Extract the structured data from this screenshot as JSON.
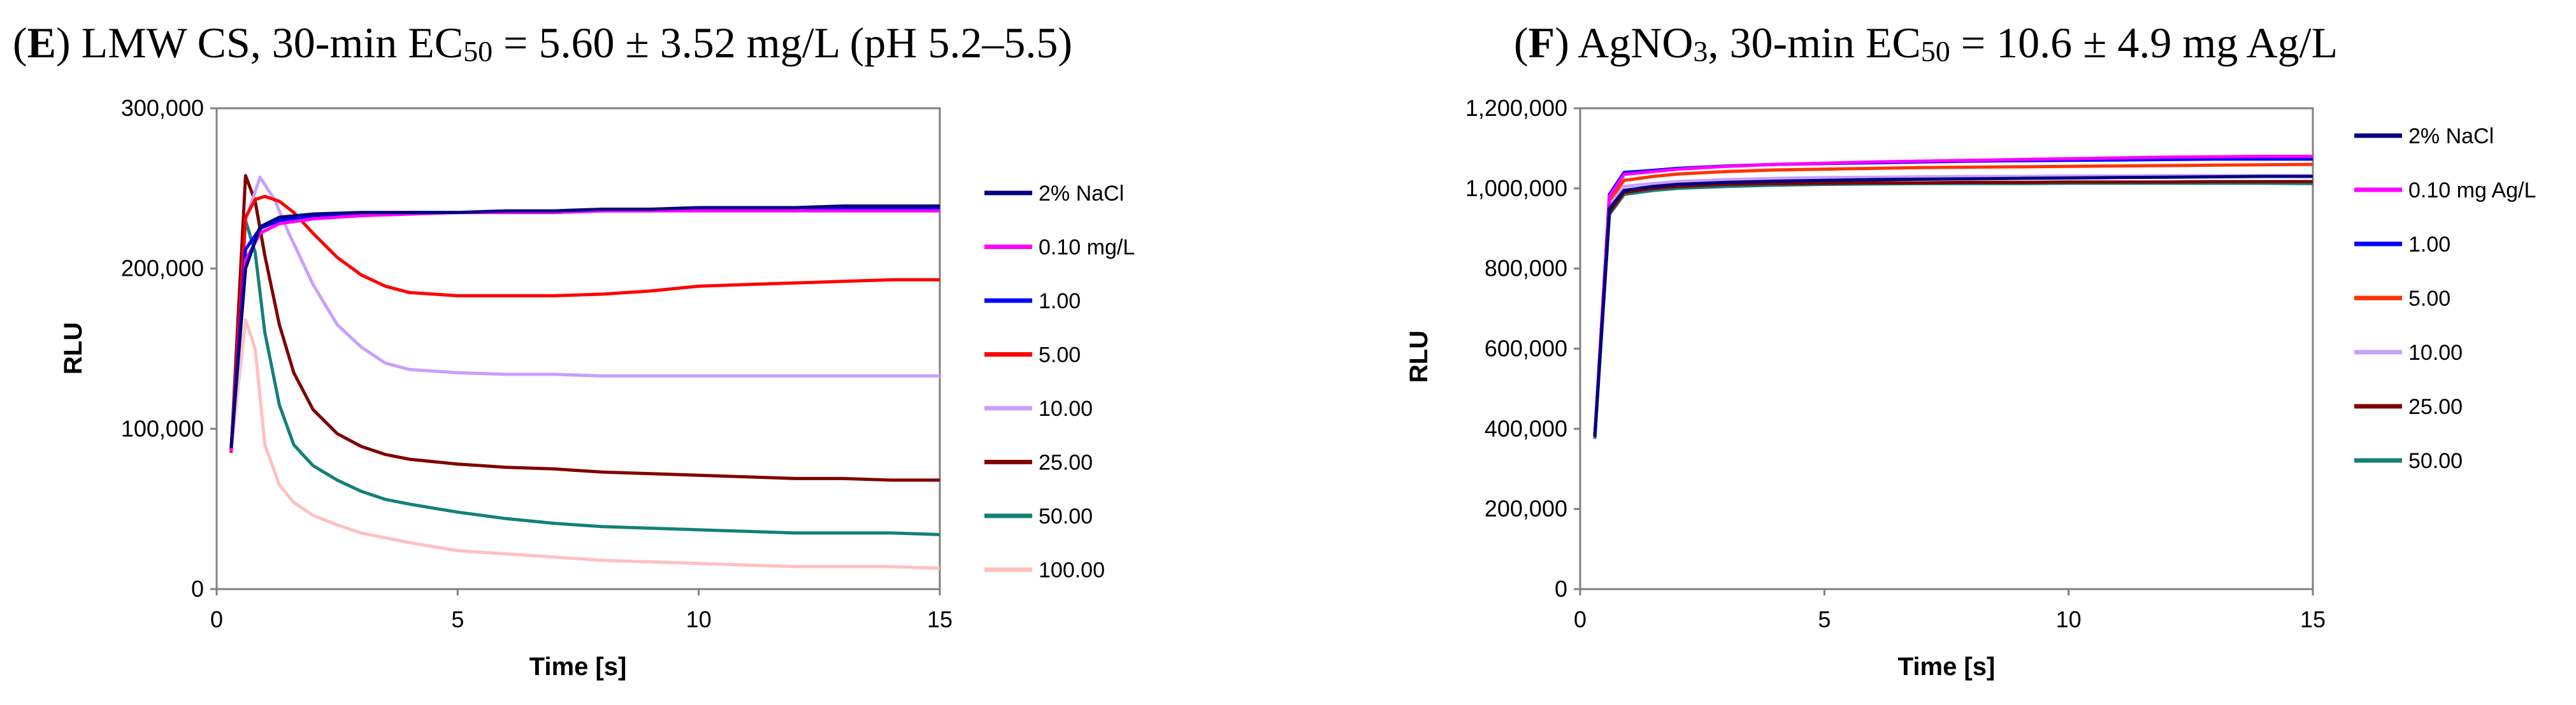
{
  "chart_data": [
    {
      "type": "line",
      "panel": "E",
      "title": "LMW CS, 30-min EC50 = 5.60 ± 3.52 mg/L (pH 5.2–5.5)",
      "title_parts": {
        "open": "(",
        "letter": "E",
        "close": ")",
        "pre": " LMW CS, 30-min EC",
        "sub": "50",
        "post": " = 5.60 ± 3.52 mg/L (pH 5.2–5.5)"
      },
      "xlabel": "Time [s]",
      "ylabel": "RLU",
      "xlim": [
        0,
        15
      ],
      "ylim": [
        0,
        300000
      ],
      "xticks": [
        0,
        5,
        10,
        15
      ],
      "xtick_labels": [
        "0",
        "5",
        "10",
        "15"
      ],
      "yticks": [
        0,
        100000,
        200000,
        300000
      ],
      "ytick_labels": [
        "0",
        "100,000",
        "200,000",
        "300,000"
      ],
      "legend_position": "right",
      "series": [
        {
          "name": "2% NaCl",
          "color": "#00007f",
          "x": [
            0.3,
            0.6,
            0.9,
            1.3,
            2,
            3,
            4,
            5,
            6,
            7,
            8,
            9,
            10,
            11,
            12,
            13,
            14,
            15
          ],
          "y": [
            88000,
            200000,
            226000,
            232000,
            234000,
            235000,
            235000,
            235000,
            236000,
            236000,
            237000,
            237000,
            238000,
            238000,
            238000,
            239000,
            239000,
            239000
          ]
        },
        {
          "name": "0.10  mg/L",
          "color": "#ff00ff",
          "x": [
            0.3,
            0.6,
            0.9,
            1.3,
            2,
            3,
            4,
            5,
            6,
            7,
            8,
            9,
            10,
            11,
            12,
            13,
            14,
            15
          ],
          "y": [
            86000,
            205000,
            222000,
            228000,
            231000,
            233000,
            234000,
            235000,
            235000,
            235000,
            236000,
            236000,
            236000,
            236000,
            236000,
            236000,
            236000,
            236000
          ]
        },
        {
          "name": "1.00",
          "color": "#0000ff",
          "x": [
            0.3,
            0.6,
            0.9,
            1.3,
            2,
            3,
            4,
            5,
            6,
            7,
            8,
            9,
            10,
            11,
            12,
            13,
            14,
            15
          ],
          "y": [
            87000,
            212000,
            225000,
            230000,
            233000,
            234000,
            235000,
            235000,
            235000,
            235000,
            236000,
            236000,
            237000,
            237000,
            236000,
            237000,
            237000,
            237000
          ]
        },
        {
          "name": "5.00",
          "color": "#ff0000",
          "x": [
            0.3,
            0.6,
            0.8,
            1.0,
            1.3,
            1.6,
            2,
            2.5,
            3,
            3.5,
            4,
            4.5,
            5,
            6,
            7,
            8,
            9,
            10,
            11,
            12,
            13,
            14,
            15
          ],
          "y": [
            85000,
            232000,
            243000,
            245000,
            242000,
            235000,
            222000,
            207000,
            196000,
            189000,
            185000,
            184000,
            183000,
            183000,
            183000,
            184000,
            186000,
            189000,
            190000,
            191000,
            192000,
            193000,
            193000
          ]
        },
        {
          "name": "10.00",
          "color": "#c8a0ff",
          "x": [
            0.3,
            0.6,
            0.9,
            1.2,
            1.5,
            2,
            2.5,
            3,
            3.5,
            4,
            5,
            6,
            7,
            8,
            9,
            10,
            11,
            12,
            13,
            14,
            15
          ],
          "y": [
            87000,
            230000,
            257000,
            243000,
            222000,
            190000,
            165000,
            151000,
            141000,
            137000,
            135000,
            134000,
            134000,
            133000,
            133000,
            133000,
            133000,
            133000,
            133000,
            133000,
            133000
          ]
        },
        {
          "name": "25.00",
          "color": "#7f0000",
          "x": [
            0.3,
            0.6,
            0.8,
            1.0,
            1.3,
            1.6,
            2,
            2.5,
            3,
            3.5,
            4,
            5,
            6,
            7,
            8,
            9,
            10,
            11,
            12,
            13,
            14,
            15
          ],
          "y": [
            86000,
            258000,
            242000,
            208000,
            165000,
            135000,
            112000,
            97000,
            89000,
            84000,
            81000,
            78000,
            76000,
            75000,
            73000,
            72000,
            71000,
            70000,
            69000,
            69000,
            68000,
            68000
          ]
        },
        {
          "name": "50.00",
          "color": "#138078",
          "x": [
            0.3,
            0.6,
            0.8,
            1.0,
            1.3,
            1.6,
            2,
            2.5,
            3,
            3.5,
            4,
            5,
            6,
            7,
            8,
            9,
            10,
            11,
            12,
            13,
            14,
            15
          ],
          "y": [
            87000,
            230000,
            210000,
            160000,
            115000,
            90000,
            77000,
            68000,
            61000,
            56000,
            53000,
            48000,
            44000,
            41000,
            39000,
            38000,
            37000,
            36000,
            35000,
            35000,
            35000,
            34000
          ]
        },
        {
          "name": "100.00",
          "color": "#ffc0c0",
          "x": [
            0.3,
            0.6,
            0.8,
            1.0,
            1.3,
            1.6,
            2,
            2.5,
            3,
            3.5,
            4,
            5,
            6,
            7,
            8,
            9,
            10,
            11,
            12,
            13,
            14,
            15
          ],
          "y": [
            86000,
            168000,
            150000,
            90000,
            65000,
            54000,
            46000,
            40000,
            35000,
            32000,
            29000,
            24000,
            22000,
            20000,
            18000,
            17000,
            16000,
            15000,
            14000,
            14000,
            14000,
            13000
          ]
        }
      ]
    },
    {
      "type": "line",
      "panel": "F",
      "title": "AgNO3, 30-min EC50 = 10.6 ± 4.9 mg Ag/L",
      "title_parts": {
        "open": "(",
        "letter": "F",
        "close": ")",
        "pre": " AgNO",
        "sub1": "3",
        "mid": ", 30-min EC",
        "sub2": "50",
        "post": " = 10.6 ± 4.9 mg Ag/L"
      },
      "xlabel": "Time [s]",
      "ylabel": "RLU",
      "xlim": [
        0,
        15
      ],
      "ylim": [
        0,
        1200000
      ],
      "xticks": [
        0,
        5,
        10,
        15
      ],
      "xtick_labels": [
        "0",
        "5",
        "10",
        "15"
      ],
      "yticks": [
        0,
        200000,
        400000,
        600000,
        800000,
        1000000,
        1200000
      ],
      "ytick_labels": [
        "0",
        "200,000",
        "400,000",
        "600,000",
        "800,000",
        "1,000,000",
        "1,200,000"
      ],
      "legend_position": "right",
      "series": [
        {
          "name": "2% NaCl",
          "color": "#00007f",
          "x": [
            0.3,
            0.6,
            0.9,
            1.5,
            2,
            3,
            4,
            5,
            6,
            7,
            8,
            9,
            10,
            11,
            12,
            13,
            14,
            15
          ],
          "y": [
            380000,
            950000,
            995000,
            1005000,
            1010000,
            1015000,
            1018000,
            1020000,
            1022000,
            1023000,
            1024000,
            1025000,
            1026000,
            1027000,
            1028000,
            1029000,
            1030000,
            1030000
          ]
        },
        {
          "name": "0.10 mg Ag/L",
          "color": "#ff00ff",
          "x": [
            0.3,
            0.6,
            0.9,
            1.5,
            2,
            3,
            4,
            5,
            6,
            7,
            8,
            9,
            10,
            11,
            12,
            13,
            14,
            15
          ],
          "y": [
            380000,
            980000,
            1035000,
            1042000,
            1048000,
            1055000,
            1060000,
            1063000,
            1066000,
            1068000,
            1070000,
            1072000,
            1074000,
            1076000,
            1078000,
            1079000,
            1080000,
            1080000
          ]
        },
        {
          "name": "1.00",
          "color": "#0000ff",
          "x": [
            0.3,
            0.6,
            0.9,
            1.5,
            2,
            3,
            4,
            5,
            6,
            7,
            8,
            9,
            10,
            11,
            12,
            13,
            14,
            15
          ],
          "y": [
            380000,
            985000,
            1040000,
            1045000,
            1050000,
            1056000,
            1060000,
            1062000,
            1064000,
            1066000,
            1068000,
            1069000,
            1070000,
            1071000,
            1072000,
            1073000,
            1073000,
            1073000
          ]
        },
        {
          "name": "5.00",
          "color": "#ff3300",
          "x": [
            0.3,
            0.6,
            0.9,
            1.5,
            2,
            3,
            4,
            5,
            6,
            7,
            8,
            9,
            10,
            11,
            12,
            13,
            14,
            15
          ],
          "y": [
            380000,
            970000,
            1020000,
            1030000,
            1036000,
            1042000,
            1046000,
            1048000,
            1050000,
            1052000,
            1053000,
            1054000,
            1055000,
            1056000,
            1057000,
            1058000,
            1059000,
            1060000
          ]
        },
        {
          "name": "10.00",
          "color": "#c8a0ff",
          "x": [
            0.3,
            0.6,
            0.9,
            1.5,
            2,
            3,
            4,
            5,
            6,
            7,
            8,
            9,
            10,
            11,
            12,
            13,
            14,
            15
          ],
          "y": [
            380000,
            960000,
            1005000,
            1012000,
            1017000,
            1022000,
            1025000,
            1027000,
            1028000,
            1029000,
            1030000,
            1030000,
            1031000,
            1031000,
            1032000,
            1032000,
            1032000,
            1032000
          ]
        },
        {
          "name": "25.00",
          "color": "#7f0000",
          "x": [
            0.3,
            0.6,
            0.9,
            1.5,
            2,
            3,
            4,
            5,
            6,
            7,
            8,
            9,
            10,
            11,
            12,
            13,
            14,
            15
          ],
          "y": [
            380000,
            940000,
            990000,
            1000000,
            1005000,
            1010000,
            1012000,
            1013000,
            1014000,
            1014000,
            1015000,
            1015000,
            1016000,
            1016000,
            1016000,
            1017000,
            1017000,
            1017000
          ]
        },
        {
          "name": "50.00",
          "color": "#138078",
          "x": [
            0.3,
            0.6,
            0.9,
            1.5,
            2,
            3,
            4,
            5,
            6,
            7,
            8,
            9,
            10,
            11,
            12,
            13,
            14,
            15
          ],
          "y": [
            375000,
            935000,
            985000,
            995000,
            1000000,
            1005000,
            1008000,
            1010000,
            1011000,
            1012000,
            1012000,
            1012000,
            1013000,
            1013000,
            1013000,
            1013000,
            1013000,
            1012000
          ]
        }
      ]
    }
  ]
}
